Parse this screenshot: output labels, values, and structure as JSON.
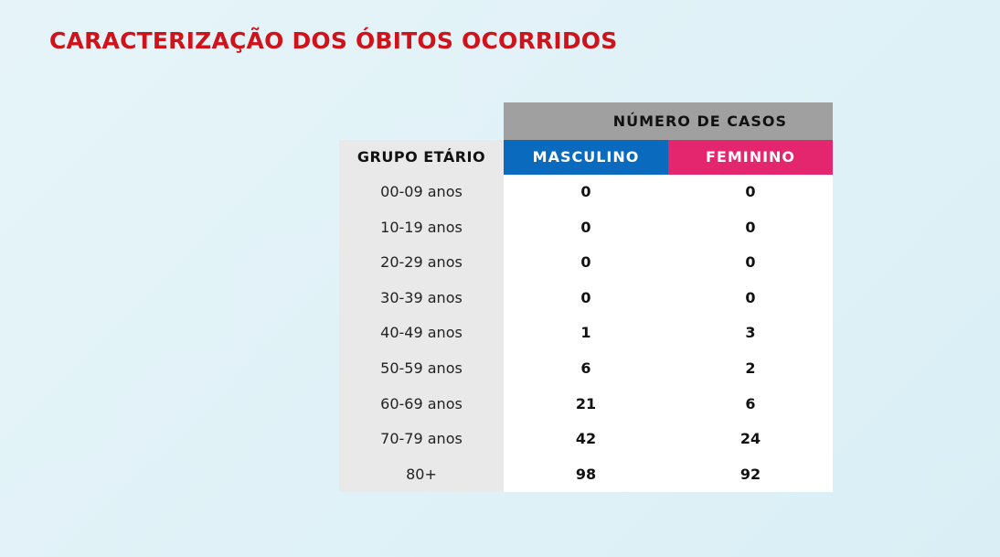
{
  "title": "CARACTERIZAÇÃO DOS ÓBITOS OCORRIDOS",
  "table": {
    "top_header": "NÚMERO DE CASOS",
    "col_group": "GRUPO ETÁRIO",
    "col_male": "MASCULINO",
    "col_female": "FEMININO",
    "rows": [
      {
        "age": "00-09 anos",
        "male": "0",
        "female": "0"
      },
      {
        "age": "10-19 anos",
        "male": "0",
        "female": "0"
      },
      {
        "age": "20-29 anos",
        "male": "0",
        "female": "0"
      },
      {
        "age": "30-39 anos",
        "male": "0",
        "female": "0"
      },
      {
        "age": "40-49 anos",
        "male": "1",
        "female": "3"
      },
      {
        "age": "50-59 anos",
        "male": "6",
        "female": "2"
      },
      {
        "age": "60-69 anos",
        "male": "21",
        "female": "6"
      },
      {
        "age": "70-79 anos",
        "male": "42",
        "female": "24"
      },
      {
        "age": "80+",
        "male": "98",
        "female": "92"
      }
    ]
  },
  "colors": {
    "title": "#d0121b",
    "male": "#0a6bbe",
    "female": "#e4266e",
    "top_header": "#a0a0a0"
  }
}
